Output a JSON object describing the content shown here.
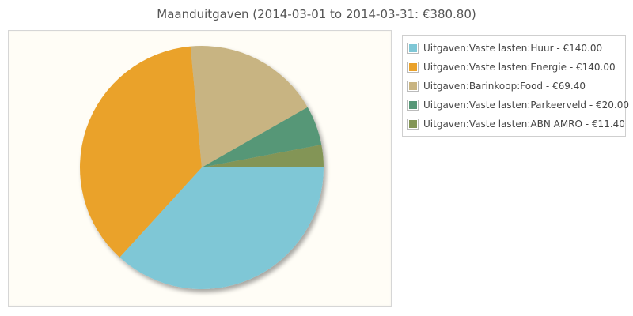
{
  "chart_data": {
    "type": "pie",
    "title": "Maanduitgaven (2014-03-01 to 2014-03-31: €380.80)",
    "slices": [
      {
        "label": "Uitgaven:Vaste lasten:Huur",
        "value": 140.0,
        "display": "€140.00",
        "color": "#7fc7d6"
      },
      {
        "label": "Uitgaven:Vaste lasten:Energie",
        "value": 140.0,
        "display": "€140.00",
        "color": "#eaa22b"
      },
      {
        "label": "Uitgaven:Barinkoop:Food",
        "value": 69.4,
        "display": "€69.40",
        "color": "#c8b482"
      },
      {
        "label": "Uitgaven:Vaste lasten:Parkeerveld",
        "value": 20.0,
        "display": "€20.00",
        "color": "#579777"
      },
      {
        "label": "Uitgaven:Vaste lasten:ABN AMRO",
        "value": 11.4,
        "display": "€11.40",
        "color": "#839556"
      }
    ],
    "legend_position": "right",
    "start_angle": "east, clockwise"
  }
}
